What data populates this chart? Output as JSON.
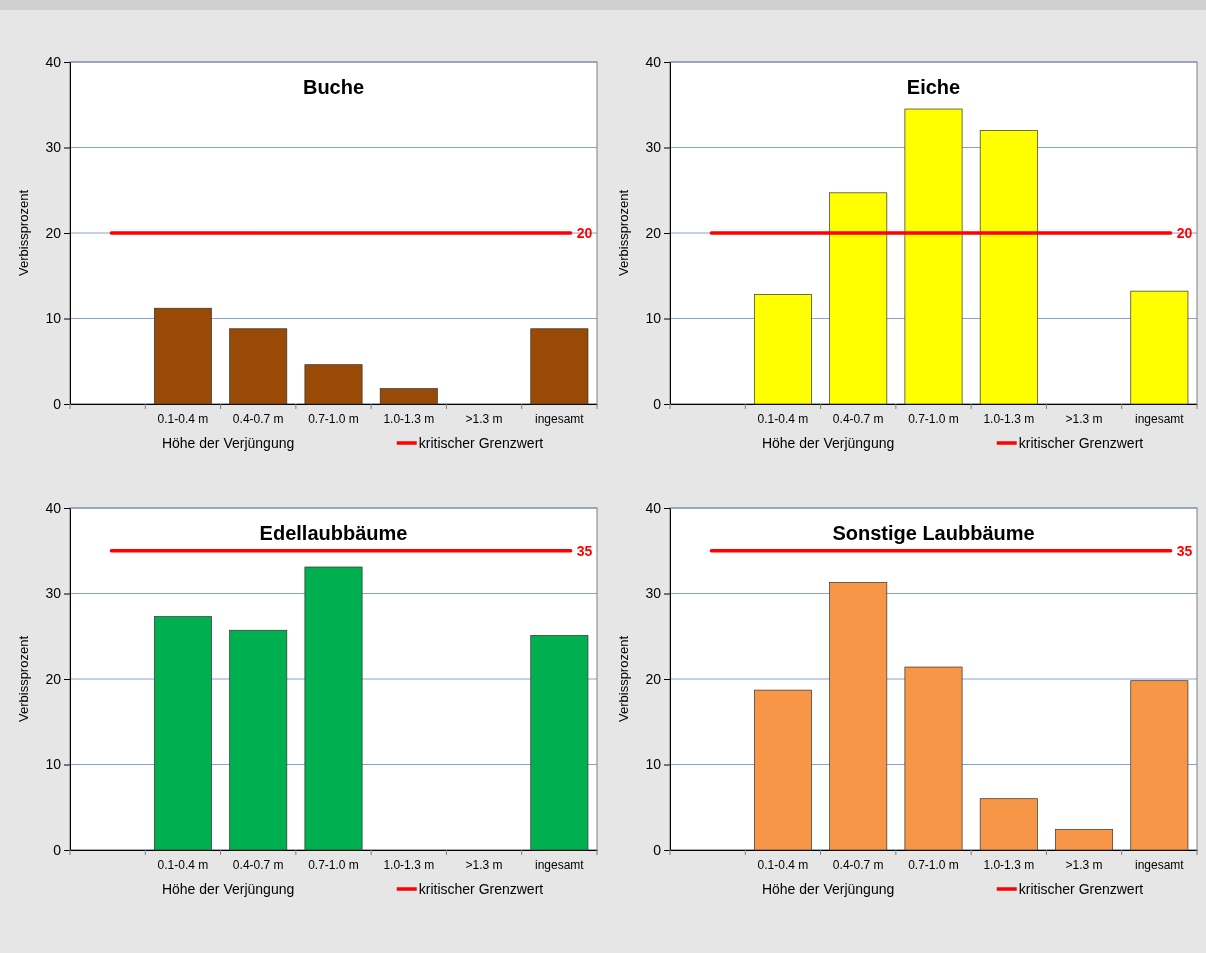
{
  "chart_data": [
    {
      "type": "bar",
      "title": "Buche",
      "xlabel": "Höhe der Verjüngung",
      "ylabel": "Verbissprozent",
      "categories": [
        null,
        "0.1-0.4 m",
        "0.4-0.7 m",
        "0.7-1.0 m",
        "1.0-1.3 m",
        ">1.3 m",
        "ingesamt"
      ],
      "values": [
        null,
        11.2,
        8.8,
        4.6,
        1.8,
        0,
        8.8
      ],
      "color": "#994a06",
      "ylim": [
        0,
        40
      ],
      "yticks": [
        0,
        10,
        20,
        30,
        40
      ],
      "grid": "y",
      "ref_lines": [
        {
          "axis": "y",
          "value": 20,
          "label": "20",
          "color": "#ff0000"
        }
      ],
      "annotations": [
        "kritischer Grenzwert"
      ]
    },
    {
      "type": "bar",
      "title": "Eiche",
      "xlabel": "Höhe der Verjüngung",
      "ylabel": "Verbissprozent",
      "categories": [
        null,
        "0.1-0.4 m",
        "0.4-0.7 m",
        "0.7-1.0 m",
        "1.0-1.3 m",
        ">1.3 m",
        "ingesamt"
      ],
      "values": [
        null,
        12.8,
        24.7,
        34.5,
        32.0,
        0,
        13.2
      ],
      "color": "#ffff00",
      "ylim": [
        0,
        40
      ],
      "yticks": [
        0,
        10,
        20,
        30,
        40
      ],
      "grid": "y",
      "ref_lines": [
        {
          "axis": "y",
          "value": 20,
          "label": "20",
          "color": "#ff0000"
        }
      ],
      "annotations": [
        "kritischer Grenzwert"
      ]
    },
    {
      "type": "bar",
      "title": "Edellaubbäume",
      "xlabel": "Höhe der Verjüngung",
      "ylabel": "Verbissprozent",
      "categories": [
        null,
        "0.1-0.4 m",
        "0.4-0.7 m",
        "0.7-1.0 m",
        "1.0-1.3 m",
        ">1.3 m",
        "ingesamt"
      ],
      "values": [
        null,
        27.3,
        25.7,
        33.1,
        0,
        0,
        25.1
      ],
      "color": "#00b050",
      "ylim": [
        0,
        40
      ],
      "yticks": [
        0,
        10,
        20,
        30,
        40
      ],
      "grid": "y",
      "ref_lines": [
        {
          "axis": "y",
          "value": 35,
          "label": "35",
          "color": "#ff0000"
        }
      ],
      "annotations": [
        "kritischer Grenzwert"
      ]
    },
    {
      "type": "bar",
      "title": "Sonstige Laubbäume",
      "xlabel": "Höhe der Verjüngung",
      "ylabel": "Verbissprozent",
      "categories": [
        null,
        "0.1-0.4 m",
        "0.4-0.7 m",
        "0.7-1.0 m",
        "1.0-1.3 m",
        ">1.3 m",
        "ingesamt"
      ],
      "values": [
        null,
        18.7,
        31.3,
        21.4,
        6.0,
        2.4,
        19.8
      ],
      "color": "#f79646",
      "ylim": [
        0,
        40
      ],
      "yticks": [
        0,
        10,
        20,
        30,
        40
      ],
      "grid": "y",
      "ref_lines": [
        {
          "axis": "y",
          "value": 35,
          "label": "35",
          "color": "#ff0000"
        }
      ],
      "annotations": [
        "kritischer Grenzwert"
      ]
    }
  ]
}
